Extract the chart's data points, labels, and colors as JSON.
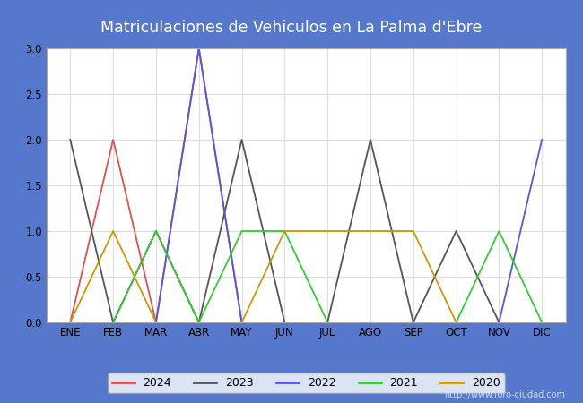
{
  "title": "Matriculaciones de Vehiculos en La Palma d'Ebre",
  "months": [
    "ENE",
    "FEB",
    "MAR",
    "ABR",
    "MAY",
    "JUN",
    "JUL",
    "AGO",
    "SEP",
    "OCT",
    "NOV",
    "DIC"
  ],
  "series_order": [
    "2024",
    "2023",
    "2022",
    "2021",
    "2020"
  ],
  "series": {
    "2024": {
      "color": "#e05050",
      "data": [
        0,
        2,
        0,
        3,
        0,
        null,
        null,
        null,
        null,
        null,
        null,
        null
      ]
    },
    "2023": {
      "color": "#555555",
      "data": [
        2,
        0,
        1,
        0,
        2,
        0,
        0,
        2,
        0,
        1,
        0,
        0
      ]
    },
    "2022": {
      "color": "#5555dd",
      "data": [
        0,
        0,
        0,
        3,
        0,
        0,
        0,
        0,
        0,
        0,
        0,
        2
      ]
    },
    "2021": {
      "color": "#33cc33",
      "data": [
        0,
        0,
        1,
        0,
        1,
        1,
        0,
        0,
        0,
        0,
        1,
        0
      ]
    },
    "2020": {
      "color": "#cc9900",
      "data": [
        0,
        1,
        0,
        0,
        0,
        1,
        1,
        1,
        1,
        0,
        0,
        0
      ]
    }
  },
  "ylim": [
    0,
    3.0
  ],
  "yticks": [
    0.0,
    0.5,
    1.0,
    1.5,
    2.0,
    2.5,
    3.0
  ],
  "header_bg_color": "#5577cc",
  "title_color": "#ffffff",
  "fig_bg_color": "#5577cc",
  "plot_bg_color": "#f0f0f0",
  "inner_plot_bg": "#ffffff",
  "grid_color": "#dddddd",
  "watermark": "http://www.foro-ciudad.com"
}
